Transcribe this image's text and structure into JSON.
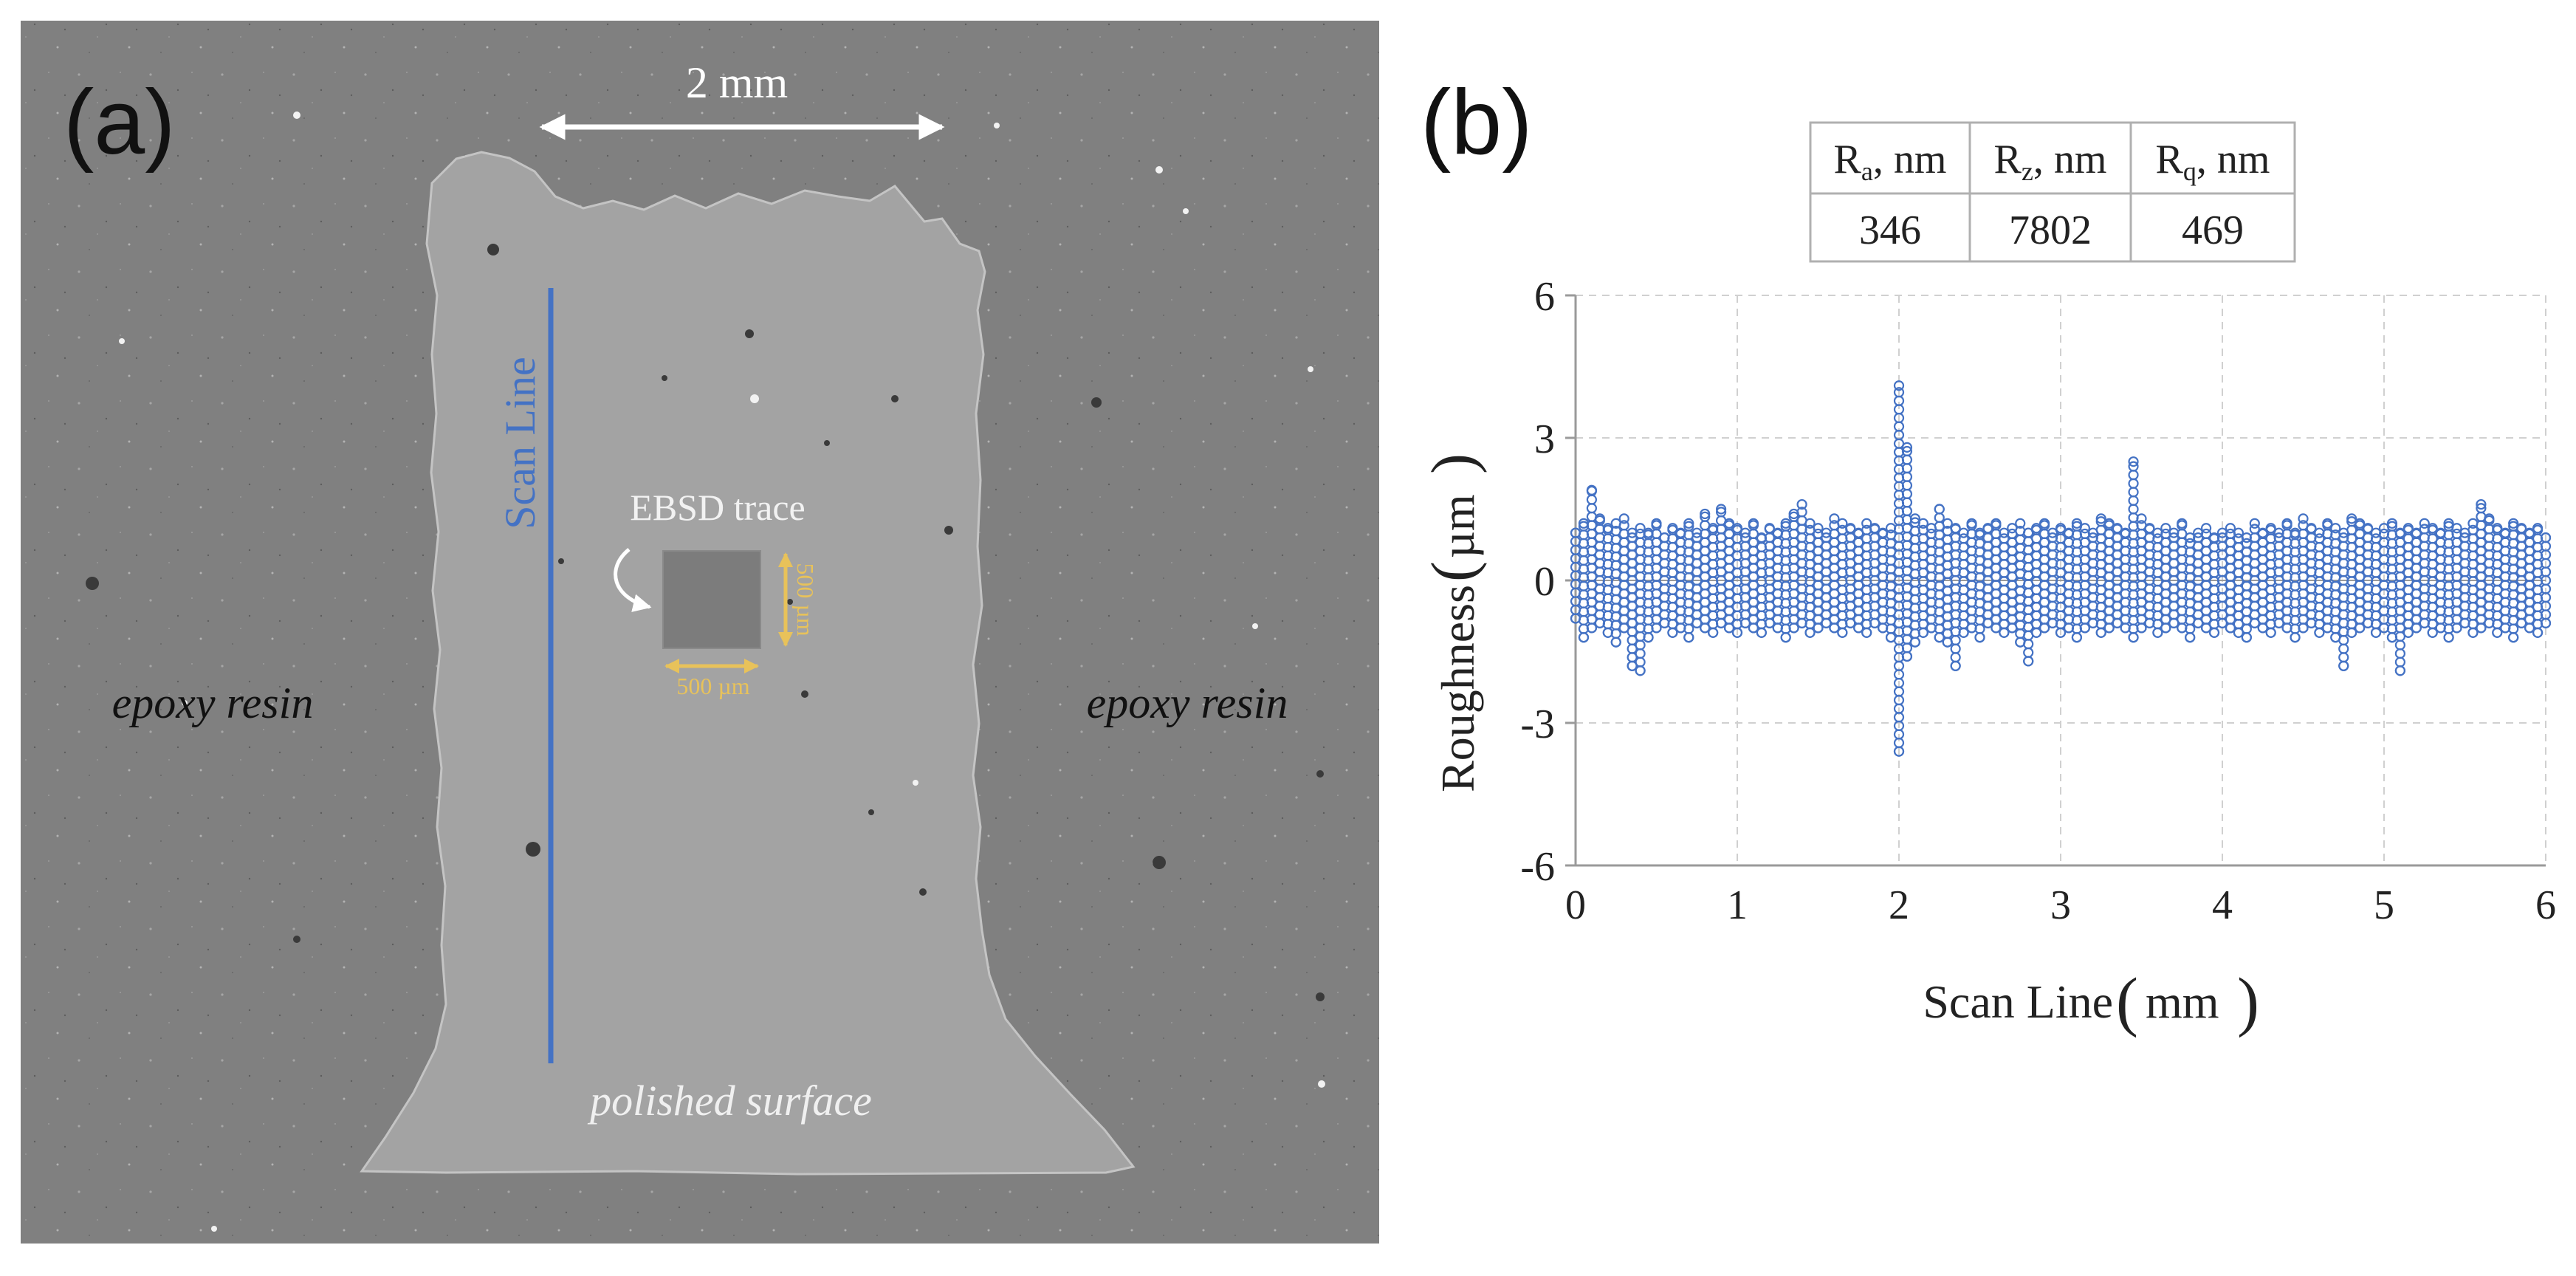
{
  "panel_a": {
    "label": "(a)",
    "scale_bar": "2 mm",
    "scan_line_label": "Scan Line",
    "trace_label": "EBSD trace",
    "trace_width": "500 µm",
    "trace_height": "500 µm",
    "left_region": "epoxy resin",
    "right_region": "epoxy resin",
    "center_region": "polished surface",
    "colors": {
      "scan_line": "#4472c4",
      "dimension": "#e8c25a"
    }
  },
  "panel_b": {
    "label": "(b)",
    "table": {
      "headers": [
        {
          "sym": "R",
          "sub": "a",
          "unit": ", nm"
        },
        {
          "sym": "R",
          "sub": "z",
          "unit": ", nm"
        },
        {
          "sym": "R",
          "sub": "q",
          "unit": ", nm"
        }
      ],
      "values": [
        "346",
        "7802",
        "469"
      ]
    }
  },
  "chart_data": {
    "type": "scatter",
    "title": "",
    "xlabel_text": "Scan Line",
    "xlabel_unit": "mm",
    "ylabel_text": "Roughness",
    "ylabel_unit": "µm",
    "xlim": [
      0,
      6
    ],
    "ylim": [
      -6,
      6
    ],
    "xticks": [
      0,
      1,
      2,
      3,
      4,
      5,
      6
    ],
    "yticks": [
      -6,
      -3,
      0,
      3,
      6
    ],
    "grid": true,
    "marker": "hollow-circle",
    "color": "#4472c4",
    "series": [
      {
        "name": "Roughness",
        "x": [
          0.0,
          0.05,
          0.1,
          0.15,
          0.2,
          0.25,
          0.3,
          0.35,
          0.4,
          0.45,
          0.5,
          0.55,
          0.6,
          0.65,
          0.7,
          0.75,
          0.8,
          0.85,
          0.9,
          0.95,
          1.0,
          1.05,
          1.1,
          1.15,
          1.2,
          1.25,
          1.3,
          1.35,
          1.4,
          1.45,
          1.5,
          1.55,
          1.6,
          1.65,
          1.7,
          1.75,
          1.8,
          1.85,
          1.9,
          1.95,
          2.0,
          2.05,
          2.1,
          2.15,
          2.2,
          2.25,
          2.3,
          2.35,
          2.4,
          2.45,
          2.5,
          2.55,
          2.6,
          2.65,
          2.7,
          2.75,
          2.8,
          2.85,
          2.9,
          2.95,
          3.0,
          3.05,
          3.1,
          3.15,
          3.2,
          3.25,
          3.3,
          3.35,
          3.4,
          3.45,
          3.5,
          3.55,
          3.6,
          3.65,
          3.7,
          3.75,
          3.8,
          3.85,
          3.9,
          3.95,
          4.0,
          4.05,
          4.1,
          4.15,
          4.2,
          4.25,
          4.3,
          4.35,
          4.4,
          4.45,
          4.5,
          4.55,
          4.6,
          4.65,
          4.7,
          4.75,
          4.8,
          4.85,
          4.9,
          4.95,
          5.0,
          5.05,
          5.1,
          5.15,
          5.2,
          5.25,
          5.3,
          5.35,
          5.4,
          5.45,
          5.5,
          5.55,
          5.6,
          5.65,
          5.7,
          5.75,
          5.8,
          5.85,
          5.9,
          5.95,
          6.0
        ],
        "max": [
          1.0,
          1.2,
          1.9,
          1.3,
          1.1,
          1.2,
          1.3,
          1.0,
          1.1,
          1.0,
          1.2,
          0.9,
          1.1,
          1.0,
          1.2,
          1.0,
          1.4,
          1.1,
          1.5,
          1.2,
          1.1,
          1.0,
          1.2,
          0.9,
          1.1,
          1.0,
          1.2,
          1.4,
          1.6,
          1.2,
          1.1,
          1.0,
          1.3,
          1.2,
          1.1,
          1.0,
          1.2,
          1.1,
          1.0,
          1.1,
          4.1,
          2.8,
          1.3,
          1.2,
          1.1,
          1.5,
          1.2,
          1.1,
          1.0,
          1.2,
          1.0,
          1.1,
          1.2,
          1.0,
          1.1,
          1.2,
          1.0,
          1.1,
          1.2,
          1.0,
          1.1,
          1.0,
          1.2,
          1.1,
          1.0,
          1.3,
          1.2,
          1.1,
          1.0,
          2.5,
          1.3,
          1.1,
          1.0,
          1.1,
          1.0,
          1.2,
          0.9,
          1.0,
          1.1,
          0.9,
          1.0,
          1.1,
          1.0,
          0.9,
          1.2,
          1.0,
          1.1,
          1.0,
          1.2,
          1.0,
          1.3,
          1.1,
          1.0,
          1.2,
          1.1,
          1.0,
          1.3,
          1.2,
          1.1,
          1.0,
          1.1,
          1.2,
          1.0,
          1.1,
          1.0,
          1.2,
          1.1,
          1.0,
          1.2,
          1.1,
          1.0,
          1.2,
          1.6,
          1.3,
          1.1,
          1.0,
          1.2,
          1.1,
          1.0,
          1.1,
          0.9
        ],
        "min": [
          -0.8,
          -1.2,
          -1.0,
          -0.9,
          -1.1,
          -1.3,
          -1.0,
          -1.8,
          -1.9,
          -1.2,
          -1.0,
          -0.9,
          -1.1,
          -1.0,
          -1.2,
          -0.9,
          -1.0,
          -1.1,
          -0.9,
          -1.0,
          -1.1,
          -0.9,
          -1.0,
          -1.1,
          -0.9,
          -1.0,
          -1.2,
          -1.0,
          -0.9,
          -1.1,
          -1.0,
          -0.9,
          -1.0,
          -1.1,
          -0.9,
          -1.0,
          -1.1,
          -0.9,
          -1.0,
          -1.2,
          -3.6,
          -1.6,
          -1.3,
          -1.1,
          -1.0,
          -1.2,
          -1.3,
          -1.8,
          -1.1,
          -1.0,
          -1.2,
          -0.9,
          -1.0,
          -1.1,
          -1.0,
          -1.3,
          -1.7,
          -1.1,
          -1.0,
          -0.9,
          -1.1,
          -1.0,
          -1.2,
          -1.0,
          -0.9,
          -1.1,
          -1.0,
          -0.9,
          -1.0,
          -1.2,
          -1.0,
          -0.9,
          -1.1,
          -1.0,
          -0.9,
          -1.0,
          -1.2,
          -0.9,
          -1.0,
          -1.1,
          -0.9,
          -1.0,
          -1.1,
          -1.2,
          -0.9,
          -1.0,
          -1.1,
          -0.9,
          -1.0,
          -1.2,
          -1.0,
          -0.9,
          -1.1,
          -1.0,
          -1.2,
          -1.8,
          -1.1,
          -1.0,
          -0.9,
          -1.1,
          -1.0,
          -1.2,
          -1.9,
          -1.1,
          -1.0,
          -0.9,
          -1.1,
          -1.0,
          -1.2,
          -1.0,
          -0.9,
          -1.1,
          -1.0,
          -0.9,
          -1.1,
          -1.0,
          -1.2,
          -0.9,
          -1.0,
          -1.1,
          -0.9
        ]
      }
    ]
  }
}
